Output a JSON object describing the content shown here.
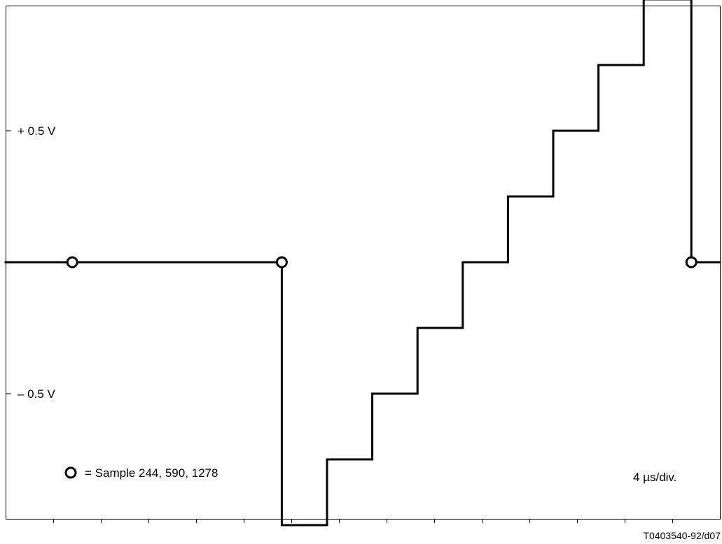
{
  "chart_data": {
    "type": "line",
    "step": true,
    "y_labels": [
      {
        "text": "+ 0.5 V",
        "value": 0.5
      },
      {
        "text": "– 0.5 V",
        "value": -0.5
      }
    ],
    "ylim": [
      -1.0,
      1.0
    ],
    "x_tick_count": 15,
    "grid": false,
    "series": [
      {
        "x": [
          0,
          1.4,
          5.8,
          5.8,
          6.75,
          6.75,
          7.7,
          7.7,
          8.65,
          8.65,
          9.6,
          9.6,
          10.55,
          10.55,
          11.5,
          11.5,
          12.45,
          12.45,
          13.4,
          13.4,
          14.4,
          14.4,
          15.0
        ],
        "values": [
          0,
          0,
          0,
          -1.0,
          -1.0,
          -0.75,
          -0.75,
          -0.5,
          -0.5,
          -0.25,
          -0.25,
          0,
          0,
          0.25,
          0.25,
          0.5,
          0.5,
          0.75,
          0.75,
          1.0,
          1.0,
          0,
          0
        ]
      }
    ],
    "markers": [
      {
        "x": 1.4,
        "value": 0
      },
      {
        "x": 5.8,
        "value": 0
      },
      {
        "x": 14.4,
        "value": 0
      }
    ],
    "legend_text": "= Sample 244, 590, 1278",
    "scale_text": "4 µs/div.",
    "figure_id": "T0403540-92/d07"
  }
}
